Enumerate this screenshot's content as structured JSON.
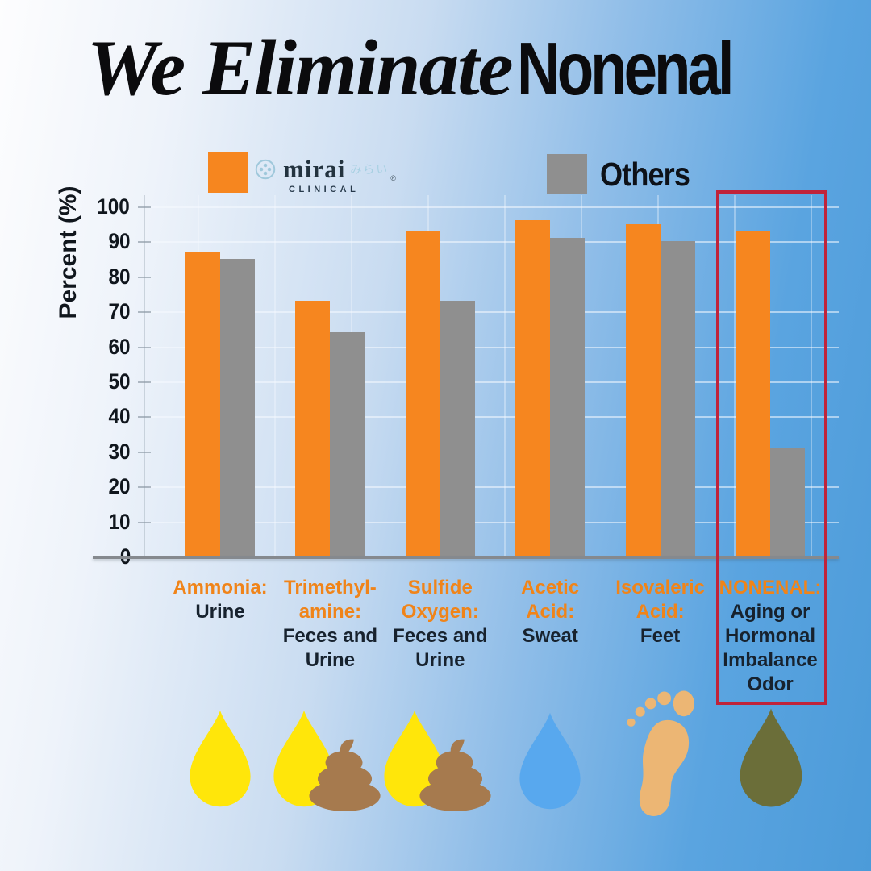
{
  "title": {
    "script": "We Eliminate",
    "bold": "Nonenal"
  },
  "legend": {
    "mirai": {
      "brand": "mirai",
      "brand_jp": "みらい",
      "registered": "®",
      "sub": "CLINICAL"
    },
    "others_label": "Others"
  },
  "y_axis": {
    "label": "Percent (%)",
    "ticks": [
      100,
      90,
      80,
      70,
      60,
      50,
      40,
      30,
      20,
      10,
      0
    ]
  },
  "chart_data": {
    "type": "bar",
    "title": "We Eliminate Nonenal",
    "xlabel": "",
    "ylabel": "Percent (%)",
    "ylim": [
      0,
      100
    ],
    "grid": true,
    "legend_position": "top",
    "categories": [
      "Ammonia: Urine",
      "Trimethylamine: Feces and Urine",
      "Sulfide Oxygen: Feces and Urine",
      "Acetic Acid: Sweat",
      "Isovaleric Acid: Feet",
      "NONENAL: Aging or Hormonal Imbalance Odor"
    ],
    "series": [
      {
        "name": "Mirai Clinical",
        "color": "#F6861F",
        "values": [
          87,
          73,
          93,
          96,
          95,
          93
        ]
      },
      {
        "name": "Others",
        "color": "#8F8F8F",
        "values": [
          85,
          64,
          73,
          91,
          90,
          31
        ]
      }
    ],
    "annotation": "NONENAL category outlined with red box"
  },
  "categories": [
    {
      "name_lines": [
        "Ammonia:"
      ],
      "source_lines": [
        "Urine"
      ],
      "icon": "urine-drop-icon"
    },
    {
      "name_lines": [
        "Trimethyl-",
        "amine:"
      ],
      "source_lines": [
        "Feces and",
        "Urine"
      ],
      "icon": "feces-and-urine-icon"
    },
    {
      "name_lines": [
        "Sulfide",
        "Oxygen:"
      ],
      "source_lines": [
        "Feces and",
        "Urine"
      ],
      "icon": "feces-and-urine-icon"
    },
    {
      "name_lines": [
        "Acetic",
        "Acid:"
      ],
      "source_lines": [
        "Sweat"
      ],
      "icon": "sweat-drop-icon"
    },
    {
      "name_lines": [
        "Isovaleric",
        "Acid:"
      ],
      "source_lines": [
        "Feet"
      ],
      "icon": "foot-icon"
    },
    {
      "name_lines": [
        "NONENAL:"
      ],
      "source_lines": [
        "Aging or",
        "Hormonal",
        "Imbalance",
        "Odor"
      ],
      "icon": "nonenal-drop-icon"
    }
  ],
  "colors": {
    "mirai_orange": "#F6861F",
    "others_gray": "#8F8F8F",
    "highlight_red": "#C0233A",
    "label_orange": "#F08419",
    "text_dark": "#17222E",
    "urine_yellow": "#FFE60A",
    "sweat_blue": "#58A8EE",
    "poop_brown": "#A67A4E",
    "foot_tan": "#ECB674",
    "nonenal_olive": "#6B6E39"
  }
}
